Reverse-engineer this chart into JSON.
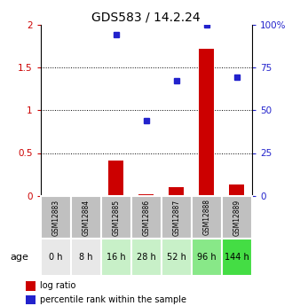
{
  "title": "GDS583 / 14.2.24",
  "samples": [
    "GSM12883",
    "GSM12884",
    "GSM12885",
    "GSM12886",
    "GSM12887",
    "GSM12888",
    "GSM12889"
  ],
  "ages": [
    "0 h",
    "8 h",
    "16 h",
    "28 h",
    "52 h",
    "96 h",
    "144 h"
  ],
  "log_ratio": [
    0.0,
    0.0,
    0.41,
    0.02,
    0.1,
    1.72,
    0.13
  ],
  "percentile_rank": [
    null,
    null,
    1.88,
    0.88,
    1.34,
    2.0,
    1.38
  ],
  "log_ratio_color": "#cc0000",
  "percentile_color": "#2222cc",
  "left_yticks": [
    0,
    0.5,
    1.0,
    1.5,
    2.0
  ],
  "left_yticklabels": [
    "0",
    "0.5",
    "1",
    "1.5",
    "2"
  ],
  "right_yticklabels": [
    "0",
    "25",
    "50",
    "75",
    "100%"
  ],
  "ylim": [
    0,
    2.0
  ],
  "age_bg_colors": [
    "#e8e8e8",
    "#e8e8e8",
    "#c8f0c8",
    "#c8f0c8",
    "#c8f0c8",
    "#88e888",
    "#44dd44"
  ],
  "sample_bg_color": "#c0c0c0",
  "legend_log_ratio": "log ratio",
  "legend_percentile": "percentile rank within the sample",
  "age_label": "age"
}
